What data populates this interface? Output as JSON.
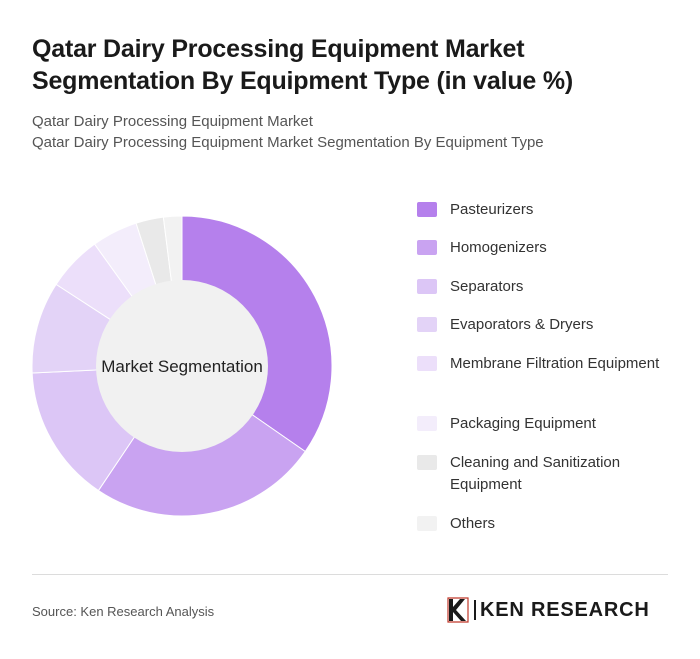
{
  "title": "Qatar Dairy Processing Equipment Market Segmentation By Equipment Type (in value %)",
  "subtitle_line1": "Qatar Dairy Processing Equipment Market",
  "subtitle_line2": "Qatar Dairy Processing Equipment Market Segmentation By Equipment Type",
  "source": "Source: Ken Research Analysis",
  "logo_text": "KEN RESEARCH",
  "chart_data": {
    "type": "pie",
    "subtype": "donut",
    "center_label": "Market Segmentation",
    "legend_position": "right",
    "categories": [
      "Pasteurizers",
      "Homogenizers",
      "Separators",
      "Evaporators & Dryers",
      "Membrane Filtration Equipment",
      "Packaging Equipment",
      "Cleaning and Sanitization Equipment",
      "Others"
    ],
    "values": [
      35,
      25,
      15,
      10,
      6,
      5,
      3,
      2
    ],
    "colors": [
      "#b580ec",
      "#c9a3f1",
      "#dcc6f6",
      "#e3d3f7",
      "#ecdffa",
      "#f3edfb",
      "#e9e9e9",
      "#f2f2f2"
    ]
  }
}
